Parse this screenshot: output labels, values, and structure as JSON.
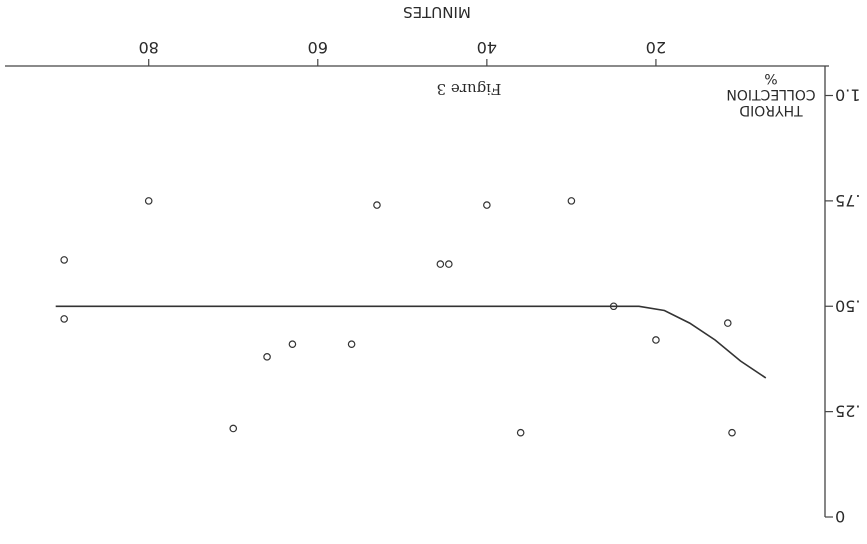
{
  "chart_data": {
    "type": "scatter",
    "title": "",
    "xlabel": "MINUTES",
    "ylabel_lines": [
      "THYROID",
      "COLLECTION",
      "%"
    ],
    "caption": "Figure 3",
    "x_ticks": [
      {
        "value": 20,
        "label": "20"
      },
      {
        "value": 40,
        "label": "40"
      },
      {
        "value": 60,
        "label": "60"
      },
      {
        "value": 80,
        "label": "80"
      }
    ],
    "y_ticks": [
      {
        "value": 0,
        "label": "0"
      },
      {
        "value": 0.25,
        "label": ".25"
      },
      {
        "value": 0.5,
        "label": ".50"
      },
      {
        "value": 0.75,
        "label": ".75"
      },
      {
        "value": 1.0,
        "label": "1.0"
      }
    ],
    "xlim": [
      0,
      97
    ],
    "ylim": [
      0,
      1.07
    ],
    "grid": false,
    "points": [
      {
        "x": 11,
        "y": 0.2
      },
      {
        "x": 11.5,
        "y": 0.46
      },
      {
        "x": 20,
        "y": 0.42
      },
      {
        "x": 25,
        "y": 0.5
      },
      {
        "x": 30,
        "y": 0.75
      },
      {
        "x": 36,
        "y": 0.2
      },
      {
        "x": 40,
        "y": 0.74
      },
      {
        "x": 44.5,
        "y": 0.6
      },
      {
        "x": 45.5,
        "y": 0.6
      },
      {
        "x": 53,
        "y": 0.74
      },
      {
        "x": 56,
        "y": 0.41
      },
      {
        "x": 63,
        "y": 0.41
      },
      {
        "x": 66,
        "y": 0.38
      },
      {
        "x": 70,
        "y": 0.21
      },
      {
        "x": 80,
        "y": 0.75
      },
      {
        "x": 90,
        "y": 0.47
      },
      {
        "x": 90,
        "y": 0.61
      }
    ],
    "curve": [
      {
        "x": 7,
        "y": 0.33
      },
      {
        "x": 10,
        "y": 0.37
      },
      {
        "x": 13,
        "y": 0.42
      },
      {
        "x": 16,
        "y": 0.46
      },
      {
        "x": 19,
        "y": 0.49
      },
      {
        "x": 22,
        "y": 0.5
      },
      {
        "x": 30,
        "y": 0.5
      },
      {
        "x": 50,
        "y": 0.5
      },
      {
        "x": 70,
        "y": 0.5
      },
      {
        "x": 91,
        "y": 0.5
      }
    ]
  }
}
